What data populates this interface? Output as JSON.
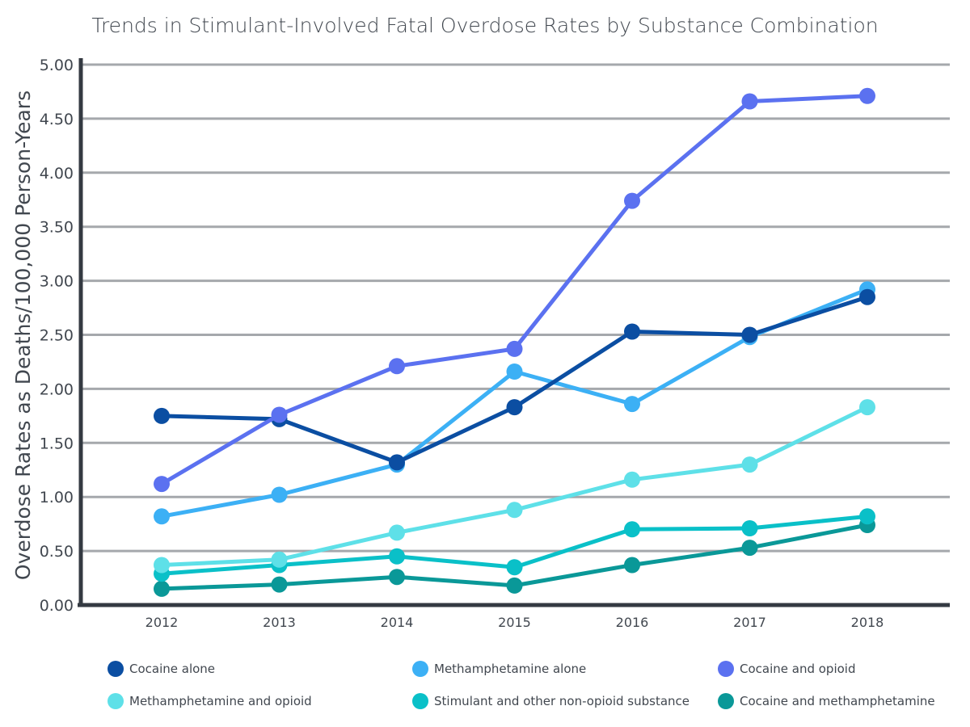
{
  "chart_data": {
    "type": "line",
    "title": "Trends in Stimulant-Involved Fatal Overdose Rates by Substance Combination",
    "xlabel": "",
    "ylabel": "Overdose Rates as Deaths/100,000 Person-Years",
    "x": [
      "2012",
      "2013",
      "2014",
      "2015",
      "2016",
      "2017",
      "2018"
    ],
    "ylim": [
      0,
      5
    ],
    "yticks": [
      "0.00",
      "0.50",
      "1.00",
      "1.50",
      "2.00",
      "2.50",
      "3.00",
      "3.50",
      "4.00",
      "4.50",
      "5.00"
    ],
    "grid": true,
    "legend_position": "bottom",
    "draw_order": [
      5,
      4,
      3,
      1,
      0,
      2
    ],
    "series": [
      {
        "name": "Cocaine alone",
        "color": "#0b4ea2",
        "values": [
          1.75,
          1.72,
          1.32,
          1.83,
          2.53,
          2.5,
          2.85
        ]
      },
      {
        "name": "Methamphetamine alone",
        "color": "#3cb0f5",
        "values": [
          0.82,
          1.02,
          1.3,
          2.16,
          1.86,
          2.48,
          2.92
        ]
      },
      {
        "name": "Cocaine and opioid",
        "color": "#5b71f0",
        "values": [
          1.12,
          1.76,
          2.21,
          2.37,
          3.74,
          4.66,
          4.71
        ]
      },
      {
        "name": "Methamphetamine and opioid",
        "color": "#5ee0e8",
        "values": [
          0.37,
          0.42,
          0.67,
          0.88,
          1.16,
          1.3,
          1.83
        ]
      },
      {
        "name": "Stimulant and other non-opioid substance",
        "color": "#0ac0c8",
        "values": [
          0.29,
          0.37,
          0.45,
          0.35,
          0.7,
          0.71,
          0.82
        ]
      },
      {
        "name": "Cocaine and methamphetamine",
        "color": "#0a9898",
        "values": [
          0.15,
          0.19,
          0.26,
          0.18,
          0.37,
          0.53,
          0.74
        ]
      }
    ]
  }
}
